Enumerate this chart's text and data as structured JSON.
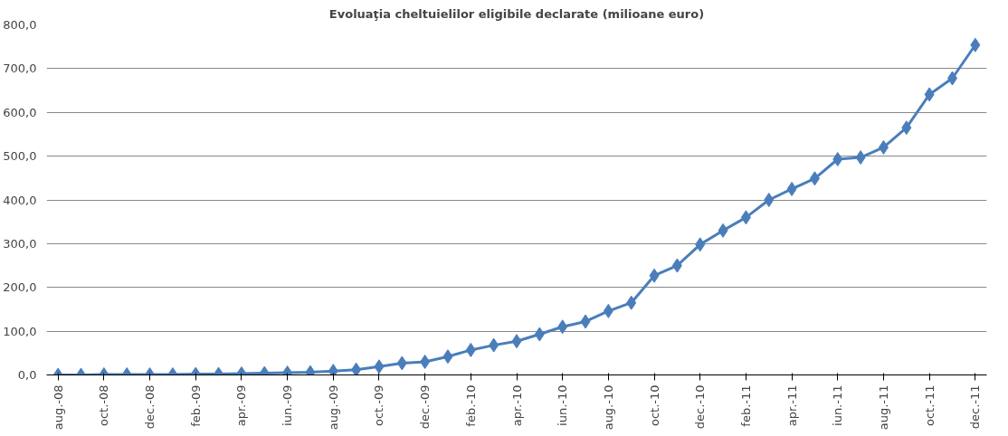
{
  "chart_data": {
    "type": "line",
    "title": "Evoluaţia cheltuielilor eligibile declarate (milioane euro)",
    "categories": [
      "aug.-08",
      null,
      "oct.-08",
      null,
      "dec.-08",
      null,
      "feb.-09",
      null,
      "apr.-09",
      null,
      "iun.-09",
      null,
      "aug.-09",
      null,
      "oct.-09",
      null,
      "dec.-09",
      null,
      "feb.-10",
      null,
      "apr.-10",
      null,
      "iun.-10",
      null,
      "aug.-10",
      null,
      "oct.-10",
      null,
      "dec.-10",
      null,
      "feb.-11",
      null,
      "apr.-11",
      null,
      "iun.-11",
      null,
      "aug.-11",
      null,
      "oct.-11",
      null,
      "dec.-11"
    ],
    "series": [
      {
        "color": "#4a7ebb",
        "values": [
          0,
          0,
          1,
          1,
          1,
          1,
          2,
          2,
          3,
          4,
          5,
          6,
          9,
          12,
          19,
          27,
          30,
          42,
          57,
          68,
          77,
          93,
          110,
          122,
          146,
          165,
          227,
          250,
          298,
          330,
          360,
          400,
          425,
          449,
          493,
          497,
          520,
          565,
          641,
          678,
          754
        ]
      }
    ],
    "ylim": [
      0,
      800
    ],
    "yticks": [
      {
        "value": 0,
        "label": "0,0"
      },
      {
        "value": 100,
        "label": "100,0"
      },
      {
        "value": 200,
        "label": "200,0"
      },
      {
        "value": 300,
        "label": "300,0"
      },
      {
        "value": 400,
        "label": "400,0"
      },
      {
        "value": 500,
        "label": "500,0"
      },
      {
        "value": 600,
        "label": "600,0"
      },
      {
        "value": 700,
        "label": "700,0"
      },
      {
        "value": 800,
        "label": "800,0"
      }
    ],
    "grid": "y",
    "marker": "diamond",
    "line_style": "solid"
  }
}
